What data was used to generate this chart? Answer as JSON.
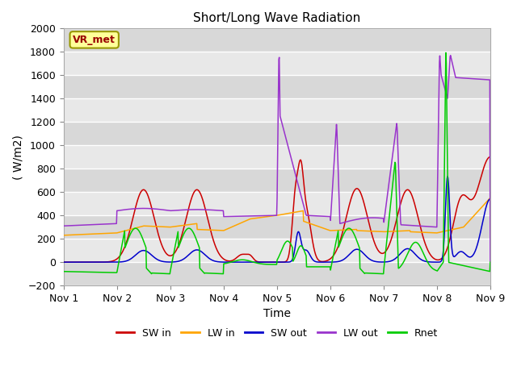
{
  "title": "Short/Long Wave Radiation",
  "xlabel": "Time",
  "ylabel": "( W/m2)",
  "xlim": [
    0,
    8
  ],
  "ylim": [
    -200,
    2000
  ],
  "yticks": [
    -200,
    0,
    200,
    400,
    600,
    800,
    1000,
    1200,
    1400,
    1600,
    1800,
    2000
  ],
  "xtick_labels": [
    "Nov 1",
    "Nov 2",
    "Nov 3",
    "Nov 4",
    "Nov 5",
    "Nov 6",
    "Nov 7",
    "Nov 8",
    "Nov 9"
  ],
  "xtick_positions": [
    0,
    1,
    2,
    3,
    4,
    5,
    6,
    7,
    8
  ],
  "colors": {
    "SW_in": "#cc0000",
    "LW_in": "#ffa500",
    "SW_out": "#0000cc",
    "LW_out": "#9933cc",
    "Rnet": "#00cc00"
  },
  "legend_labels": [
    "SW in",
    "LW in",
    "SW out",
    "LW out",
    "Rnet"
  ],
  "tag": "VR_met",
  "tag_text_color": "#990000",
  "tag_bg": "#ffff99",
  "tag_border": "#999900",
  "fig_bg": "#ffffff",
  "ax_bg": "#e8e8e8",
  "grid_color": "#ffffff",
  "title_fontsize": 11,
  "tick_fontsize": 9,
  "label_fontsize": 10
}
